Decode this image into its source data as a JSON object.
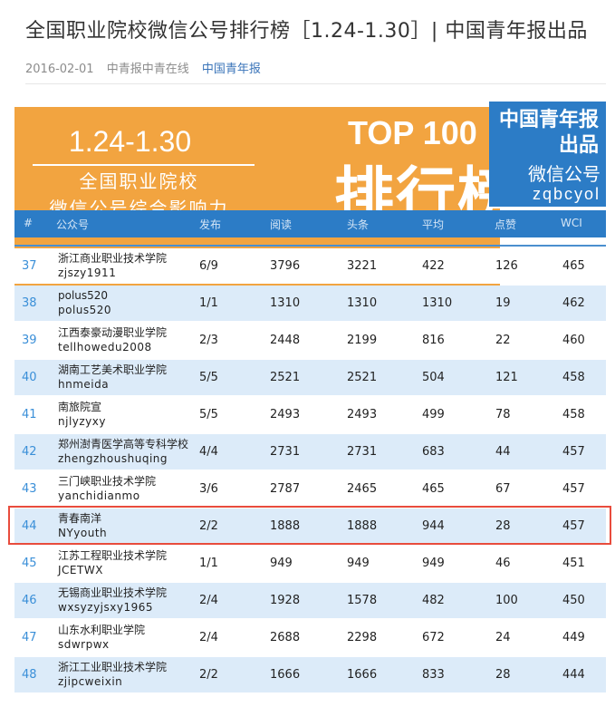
{
  "article": {
    "title": "全国职业院校微信公号排行榜［1.24-1.30］| 中国青年报出品",
    "date": "2016-02-01",
    "author": "中青报中青在线",
    "source": "中国青年报"
  },
  "banner": {
    "date_range": "1.24-1.30",
    "subtitle_line1": "全国职业院校",
    "subtitle_line2": "微信公号综合影响力",
    "top_label": "TOP 100",
    "big_title": "排行榜",
    "badge_line1": "中国青年报",
    "badge_line2": "出品",
    "badge_line3": "微信公号",
    "badge_line4": "zqbcyol",
    "banner_color": "#f2a440",
    "badge_color": "#2c7cc6"
  },
  "table": {
    "headers": [
      "#",
      "公众号",
      "发布",
      "阅读",
      "头条",
      "平均",
      "点赞",
      "WCI"
    ],
    "rows": [
      {
        "rank": "37",
        "name": "浙江商业职业技术学院",
        "id": "zjszy1911",
        "posts": "6/9",
        "reads": "3796",
        "headline": "3221",
        "avg": "422",
        "likes": "126",
        "wci": "465"
      },
      {
        "rank": "38",
        "name": "polus520",
        "id": "polus520",
        "posts": "1/1",
        "reads": "1310",
        "headline": "1310",
        "avg": "1310",
        "likes": "19",
        "wci": "462"
      },
      {
        "rank": "39",
        "name": "江西泰豪动漫职业学院",
        "id": "tellhowedu2008",
        "posts": "2/3",
        "reads": "2448",
        "headline": "2199",
        "avg": "816",
        "likes": "22",
        "wci": "460"
      },
      {
        "rank": "40",
        "name": "湖南工艺美术职业学院",
        "id": "hnmeida",
        "posts": "5/5",
        "reads": "2521",
        "headline": "2521",
        "avg": "504",
        "likes": "121",
        "wci": "458"
      },
      {
        "rank": "41",
        "name": "南旅院宣",
        "id": "njlyzyxy",
        "posts": "5/5",
        "reads": "2493",
        "headline": "2493",
        "avg": "499",
        "likes": "78",
        "wci": "458"
      },
      {
        "rank": "42",
        "name": "郑州澍青医学高等专科学校",
        "id": "zhengzhoushuqing",
        "posts": "4/4",
        "reads": "2731",
        "headline": "2731",
        "avg": "683",
        "likes": "44",
        "wci": "457"
      },
      {
        "rank": "43",
        "name": "三门峡职业技术学院",
        "id": "yanchidianmo",
        "posts": "3/6",
        "reads": "2787",
        "headline": "2465",
        "avg": "465",
        "likes": "67",
        "wci": "457"
      },
      {
        "rank": "44",
        "name": "青春南洋",
        "id": "NYyouth",
        "posts": "2/2",
        "reads": "1888",
        "headline": "1888",
        "avg": "944",
        "likes": "28",
        "wci": "457"
      },
      {
        "rank": "45",
        "name": "江苏工程职业技术学院",
        "id": "JCETWX",
        "posts": "1/1",
        "reads": "949",
        "headline": "949",
        "avg": "949",
        "likes": "46",
        "wci": "451"
      },
      {
        "rank": "46",
        "name": "无锡商业职业技术学院",
        "id": "wxsyzyjsxy1965",
        "posts": "2/4",
        "reads": "1928",
        "headline": "1578",
        "avg": "482",
        "likes": "100",
        "wci": "450"
      },
      {
        "rank": "47",
        "name": "山东水利职业学院",
        "id": "sdwrpwx",
        "posts": "2/4",
        "reads": "2688",
        "headline": "2298",
        "avg": "672",
        "likes": "24",
        "wci": "449"
      },
      {
        "rank": "48",
        "name": "浙江工业职业技术学院",
        "id": "zjipcweixin",
        "posts": "2/2",
        "reads": "1666",
        "headline": "1666",
        "avg": "833",
        "likes": "28",
        "wci": "444"
      }
    ],
    "highlighted_rank": "44",
    "highlight_color": "#e84c3d"
  }
}
